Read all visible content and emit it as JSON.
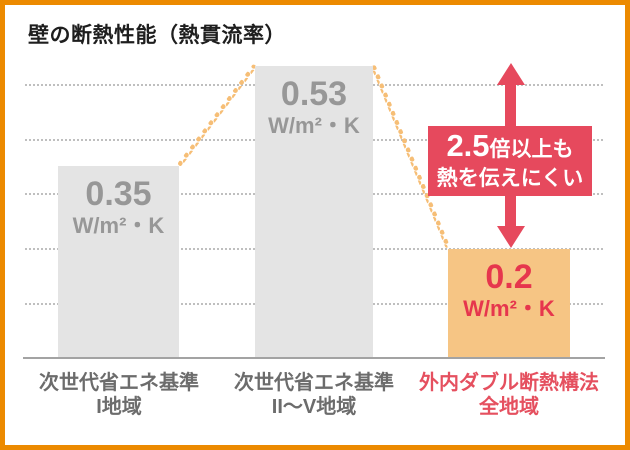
{
  "title": "壁の断熱性能（熱貫流率）",
  "chart_data": {
    "type": "bar",
    "title": "壁の断熱性能（熱貫流率）",
    "categories": [
      "次世代省エネ基準 I地域",
      "次世代省エネ基準 II〜V地域",
      "外内ダブル断熱構法 全地域"
    ],
    "values": [
      0.35,
      0.53,
      0.2
    ],
    "unit": "W/m²・K",
    "ylim": [
      0,
      0.55
    ],
    "gridline_values": [
      0.1,
      0.2,
      0.3,
      0.4,
      0.5
    ],
    "grid": true,
    "legend": "none",
    "bar_colors": [
      "#E4E4E4",
      "#E4E4E4",
      "#F6C584"
    ],
    "value_label_colors": [
      "#979797",
      "#979797",
      "#E6364D"
    ],
    "annotation": "2.5倍以上も熱を伝えにくい",
    "annotation_color": "#E6495D",
    "connector_color": "#F6BE76",
    "frame_border_color": "#EC8A00"
  },
  "bars": [
    {
      "value": "0.35",
      "unit": "W/m²・K",
      "label1": "次世代省エネ基準",
      "label2": "I地域"
    },
    {
      "value": "0.53",
      "unit": "W/m²・K",
      "label1": "次世代省エネ基準",
      "label2": "II〜V地域"
    },
    {
      "value": "0.2",
      "unit": "W/m²・K",
      "label1": "外内ダブル断熱構法",
      "label2": "全地域"
    }
  ],
  "badge": {
    "big": "2.5",
    "suffix": "倍以上も",
    "line2": "熱を伝えにくい"
  }
}
